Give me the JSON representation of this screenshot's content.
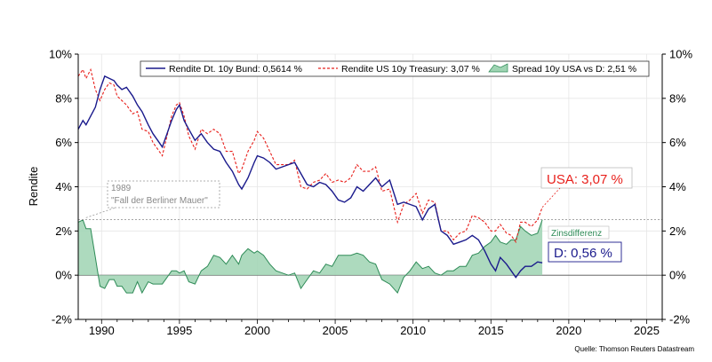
{
  "chart_data": {
    "type": "line",
    "ylabel": "Rendite",
    "ylim": [
      -2,
      10
    ],
    "xlim": [
      1988.5,
      2026
    ],
    "x_ticks": [
      "1990",
      "1995",
      "2000",
      "2005",
      "2010",
      "2015",
      "2020",
      "2025"
    ],
    "y_ticks": [
      "10%",
      "8%",
      "6%",
      "4%",
      "2%",
      "0%",
      "-2%"
    ],
    "grid": true,
    "legend": {
      "placement": "top",
      "entries": [
        {
          "label": "Rendite Dt. 10y Bund: 0,5614 %",
          "series": "bund"
        },
        {
          "label": "Rendite US 10y Treasury: 3,07 %",
          "series": "us"
        },
        {
          "label": "Spread 10y USA vs D: 2,51 %",
          "series": "spread"
        }
      ]
    },
    "series": [
      {
        "name": "Rendite Dt. 10y Bund: 0,5614 %",
        "id": "bund",
        "color": "#1a1a8c",
        "style": "solid",
        "x": [
          1988.5,
          1988.8,
          1989.0,
          1989.3,
          1989.6,
          1989.9,
          1990.2,
          1990.5,
          1990.8,
          1991.0,
          1991.3,
          1991.6,
          1992.0,
          1992.3,
          1992.6,
          1993.0,
          1993.3,
          1993.6,
          1993.9,
          1994.2,
          1994.5,
          1994.8,
          1995.0,
          1995.3,
          1995.6,
          1996.0,
          1996.4,
          1996.8,
          1997.2,
          1997.6,
          1998.0,
          1998.4,
          1998.8,
          1999.0,
          1999.4,
          1999.8,
          2000.0,
          2000.4,
          2000.8,
          2001.2,
          2001.6,
          2002.0,
          2002.4,
          2002.8,
          2003.2,
          2003.6,
          2004.0,
          2004.4,
          2004.8,
          2005.2,
          2005.6,
          2006.0,
          2006.4,
          2006.8,
          2007.2,
          2007.6,
          2008.0,
          2008.5,
          2009.0,
          2009.4,
          2009.8,
          2010.2,
          2010.6,
          2011.0,
          2011.4,
          2011.8,
          2012.2,
          2012.6,
          2013.0,
          2013.4,
          2013.8,
          2014.2,
          2014.6,
          2015.0,
          2015.3,
          2015.6,
          2016.0,
          2016.3,
          2016.6,
          2016.9,
          2017.2,
          2017.6,
          2018.0,
          2018.3
        ],
        "y": [
          6.6,
          7.0,
          6.8,
          7.2,
          7.6,
          8.4,
          9.0,
          8.9,
          8.8,
          8.6,
          8.4,
          8.5,
          8.1,
          7.7,
          7.4,
          6.8,
          6.4,
          6.1,
          5.8,
          6.4,
          7.0,
          7.5,
          7.7,
          7.0,
          6.6,
          6.1,
          6.4,
          6.0,
          5.7,
          5.6,
          5.1,
          4.7,
          4.1,
          3.9,
          4.4,
          5.1,
          5.4,
          5.3,
          5.1,
          4.8,
          4.9,
          5.0,
          5.1,
          4.6,
          4.1,
          4.0,
          4.2,
          4.1,
          3.8,
          3.4,
          3.3,
          3.5,
          4.0,
          3.8,
          4.1,
          4.4,
          4.0,
          4.3,
          3.2,
          3.3,
          3.2,
          3.1,
          2.5,
          3.0,
          3.2,
          2.0,
          1.8,
          1.4,
          1.5,
          1.6,
          1.8,
          1.6,
          1.1,
          0.5,
          0.2,
          0.8,
          0.5,
          0.2,
          -0.1,
          0.2,
          0.4,
          0.4,
          0.6,
          0.56
        ]
      },
      {
        "name": "Rendite US 10y Treasury: 3,07 %",
        "id": "us",
        "color": "#e8201c",
        "style": "dashed",
        "x": [
          1988.5,
          1988.8,
          1989.0,
          1989.3,
          1989.6,
          1989.9,
          1990.2,
          1990.5,
          1990.8,
          1991.0,
          1991.3,
          1991.6,
          1992.0,
          1992.3,
          1992.6,
          1993.0,
          1993.3,
          1993.6,
          1993.9,
          1994.2,
          1994.5,
          1994.8,
          1995.0,
          1995.3,
          1995.6,
          1996.0,
          1996.4,
          1996.8,
          1997.2,
          1997.6,
          1998.0,
          1998.4,
          1998.8,
          1999.0,
          1999.4,
          1999.8,
          2000.0,
          2000.4,
          2000.8,
          2001.2,
          2001.6,
          2002.0,
          2002.4,
          2002.8,
          2003.2,
          2003.6,
          2004.0,
          2004.4,
          2004.8,
          2005.2,
          2005.6,
          2006.0,
          2006.4,
          2006.8,
          2007.2,
          2007.6,
          2008.0,
          2008.5,
          2009.0,
          2009.4,
          2009.8,
          2010.2,
          2010.6,
          2011.0,
          2011.4,
          2011.8,
          2012.2,
          2012.6,
          2013.0,
          2013.4,
          2013.8,
          2014.2,
          2014.6,
          2015.0,
          2015.3,
          2015.6,
          2016.0,
          2016.3,
          2016.6,
          2016.9,
          2017.2,
          2017.6,
          2018.0,
          2018.3
        ],
        "y": [
          9.0,
          9.3,
          8.9,
          9.3,
          8.4,
          7.9,
          8.4,
          8.7,
          8.6,
          8.1,
          7.9,
          7.7,
          7.3,
          7.4,
          6.6,
          6.5,
          6.0,
          5.7,
          5.4,
          6.3,
          7.2,
          7.7,
          7.8,
          7.2,
          6.3,
          5.7,
          6.6,
          6.4,
          6.6,
          6.4,
          5.6,
          5.6,
          4.6,
          4.8,
          5.6,
          6.1,
          6.5,
          6.2,
          5.6,
          5.0,
          5.0,
          5.0,
          5.2,
          4.0,
          3.9,
          4.2,
          4.3,
          4.6,
          4.2,
          4.3,
          4.2,
          4.4,
          5.0,
          4.7,
          4.7,
          4.9,
          3.8,
          3.9,
          2.4,
          3.2,
          3.4,
          3.7,
          2.8,
          3.4,
          3.3,
          2.0,
          2.0,
          1.6,
          1.9,
          2.0,
          2.7,
          2.6,
          2.4,
          2.0,
          2.0,
          2.3,
          1.9,
          1.8,
          1.5,
          2.4,
          2.4,
          2.2,
          2.5,
          3.07
        ]
      },
      {
        "name": "Spread 10y USA vs D: 2,51 %",
        "id": "spread",
        "color": "#2e8b57",
        "fill": "#9fd4b3",
        "style": "area",
        "x": [
          1988.5,
          1988.8,
          1989.0,
          1989.3,
          1989.6,
          1989.9,
          1990.2,
          1990.5,
          1990.8,
          1991.0,
          1991.3,
          1991.6,
          1992.0,
          1992.3,
          1992.6,
          1993.0,
          1993.3,
          1993.6,
          1993.9,
          1994.2,
          1994.5,
          1994.8,
          1995.0,
          1995.3,
          1995.6,
          1996.0,
          1996.4,
          1996.8,
          1997.2,
          1997.6,
          1998.0,
          1998.4,
          1998.8,
          1999.0,
          1999.4,
          1999.8,
          2000.0,
          2000.4,
          2000.8,
          2001.2,
          2001.6,
          2002.0,
          2002.4,
          2002.8,
          2003.2,
          2003.6,
          2004.0,
          2004.4,
          2004.8,
          2005.2,
          2005.6,
          2006.0,
          2006.4,
          2006.8,
          2007.2,
          2007.6,
          2008.0,
          2008.5,
          2009.0,
          2009.4,
          2009.8,
          2010.2,
          2010.6,
          2011.0,
          2011.4,
          2011.8,
          2012.2,
          2012.6,
          2013.0,
          2013.4,
          2013.8,
          2014.2,
          2014.6,
          2015.0,
          2015.3,
          2015.6,
          2016.0,
          2016.3,
          2016.6,
          2016.9,
          2017.2,
          2017.6,
          2018.0,
          2018.3
        ],
        "y": [
          2.4,
          2.5,
          2.1,
          2.1,
          0.8,
          -0.5,
          -0.6,
          -0.2,
          -0.2,
          -0.5,
          -0.5,
          -0.8,
          -0.8,
          -0.3,
          -0.8,
          -0.3,
          -0.4,
          -0.4,
          -0.4,
          -0.1,
          0.2,
          0.2,
          0.1,
          0.2,
          -0.3,
          -0.4,
          0.2,
          0.4,
          0.9,
          0.8,
          0.5,
          0.9,
          0.5,
          0.9,
          1.2,
          1.0,
          1.1,
          0.9,
          0.5,
          0.2,
          0.1,
          0.0,
          0.1,
          -0.6,
          -0.2,
          0.2,
          0.1,
          0.5,
          0.4,
          0.9,
          0.9,
          0.9,
          1.0,
          0.9,
          0.6,
          0.5,
          -0.2,
          -0.4,
          -0.8,
          -0.1,
          0.2,
          0.6,
          0.3,
          0.4,
          0.1,
          0.0,
          0.2,
          0.2,
          0.4,
          0.4,
          0.9,
          1.0,
          1.3,
          1.5,
          1.8,
          1.5,
          1.4,
          1.6,
          1.6,
          2.2,
          2.0,
          1.8,
          1.9,
          2.51
        ]
      }
    ],
    "reference_line": {
      "y": 2.51,
      "style": "dotted"
    },
    "annotations": [
      {
        "id": "a1989",
        "line1": "1989",
        "line2": "\"Fall der Berliner Mauer\"",
        "x": 1989,
        "y": 2.6
      },
      {
        "id": "usa",
        "text": "USA: 3,07 %",
        "color": "#e8201c"
      },
      {
        "id": "zins",
        "text": "Zinsdifferenz",
        "color": "#2e8b57"
      },
      {
        "id": "de",
        "text": "D: 0,56 %",
        "color": "#1a1a8c"
      }
    ],
    "source": "Quelle: Thomson Reuters Datastream"
  }
}
